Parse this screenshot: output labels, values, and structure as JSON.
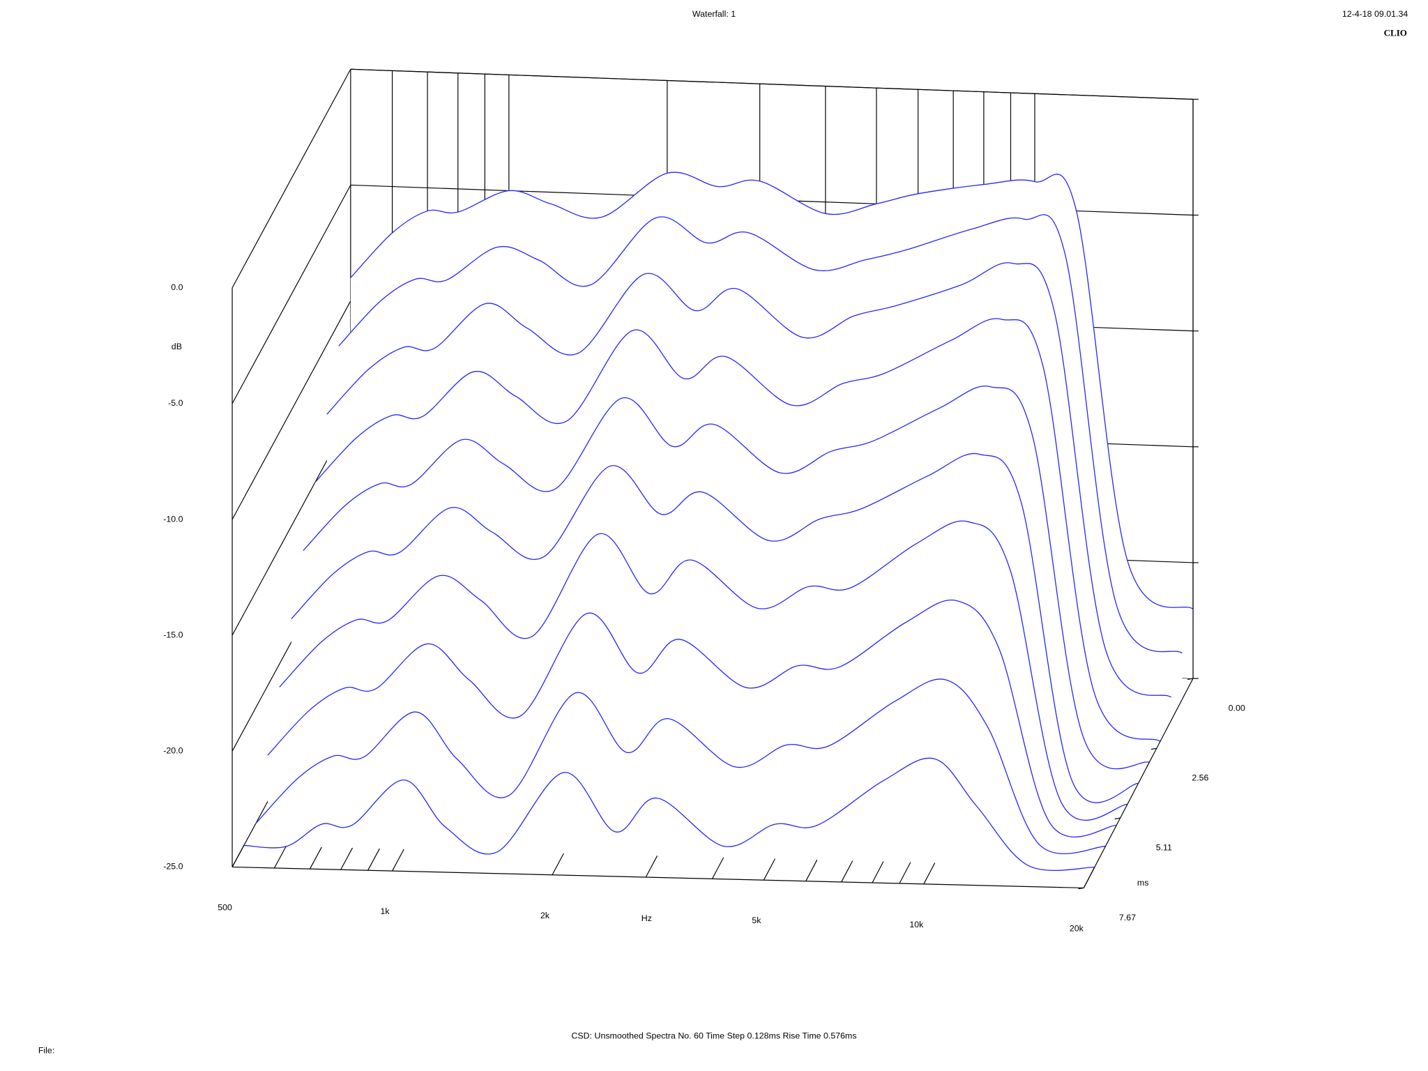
{
  "chart_data": {
    "type": "waterfall",
    "title": "Waterfall: 1",
    "timestamp": "12-4-18 09.01.34",
    "brand": "CLIO",
    "x_label": "Hz",
    "y_label": "dB",
    "z_label": "ms",
    "footer": "CSD:   Unsmoothed   Spectra No. 60   Time Step 0.128ms   Rise Time 0.576ms",
    "file_label": "File:",
    "color": "#2626ff",
    "xscale": "log",
    "xlim": [
      500,
      20000
    ],
    "xticks": [
      500,
      {
        "value": 1000,
        "label": "1k"
      },
      {
        "value": 2000,
        "label": "2k"
      },
      {
        "value": 5000,
        "label": "5k"
      },
      {
        "value": 10000,
        "label": "10k"
      },
      {
        "value": 20000,
        "label": "20k"
      }
    ],
    "xminorticks": [
      600,
      700,
      800,
      900,
      3000,
      4000,
      6000,
      7000,
      8000,
      9000
    ],
    "ylim": [
      -25,
      0
    ],
    "yticks": [
      {
        "value": 0,
        "label": "0.0"
      },
      {
        "value": -5,
        "label": "-5.0"
      },
      {
        "value": -10,
        "label": "-10.0"
      },
      {
        "value": -15,
        "label": "-15.0"
      },
      {
        "value": -20,
        "label": "-20.0"
      },
      {
        "value": -25,
        "label": "-25.0"
      }
    ],
    "zlim": [
      0,
      7.67
    ],
    "zticks": [
      {
        "value": 0,
        "label": "0.00"
      },
      2.56,
      5.11,
      7.67
    ],
    "x": [
      500,
      600,
      700,
      800,
      1000,
      1200,
      1500,
      2000,
      2500,
      3000,
      4000,
      5000,
      6000,
      8000,
      10000,
      12000,
      15000,
      20000
    ],
    "series": [
      {
        "z": 0,
        "values": [
          -9,
          -7,
          -6,
          -6,
          -5,
          -5.5,
          -6,
          -4,
          -4.5,
          -4.2,
          -5.5,
          -5,
          -4.5,
          -4,
          -3.8,
          -5,
          -20,
          -22
        ]
      },
      {
        "z": 0.768,
        "values": [
          -11,
          -9,
          -8,
          -8,
          -6.5,
          -7,
          -8,
          -5,
          -6,
          -5.5,
          -7,
          -6.5,
          -6,
          -5,
          -4.5,
          -6,
          -21,
          -23
        ]
      },
      {
        "z": 1.536,
        "values": [
          -13,
          -11,
          -10,
          -10,
          -8,
          -9,
          -10,
          -6.5,
          -8,
          -7,
          -9,
          -8,
          -7.5,
          -6.5,
          -5.5,
          -7.5,
          -22,
          -24
        ]
      },
      {
        "z": 2.304,
        "values": [
          -15,
          -13,
          -12,
          -12,
          -10,
          -11,
          -12,
          -8,
          -10,
          -9,
          -11,
          -10,
          -9.5,
          -8,
          -7,
          -9,
          -23,
          -25
        ]
      },
      {
        "z": 3.072,
        "values": [
          -17,
          -15,
          -14,
          -14,
          -12,
          -13,
          -14,
          -10,
          -12,
          -11,
          -13,
          -12,
          -11.5,
          -10,
          -9,
          -11,
          -24,
          -25
        ]
      },
      {
        "z": 3.84,
        "values": [
          -19,
          -17,
          -16,
          -16,
          -14,
          -15,
          -16,
          -12,
          -14,
          -13,
          -15,
          -14,
          -13.5,
          -12,
          -11,
          -13,
          -25,
          -25
        ]
      },
      {
        "z": 4.608,
        "values": [
          -21,
          -19,
          -18,
          -18,
          -16,
          -17,
          -18.5,
          -14,
          -16.5,
          -15,
          -17,
          -16,
          -16,
          -14,
          -13,
          -15,
          -25,
          -25
        ]
      },
      {
        "z": 5.376,
        "values": [
          -23,
          -21,
          -20,
          -20,
          -18,
          -19.5,
          -21,
          -16.5,
          -19,
          -17.5,
          -19.5,
          -18.5,
          -18.5,
          -16.5,
          -15.5,
          -17.5,
          -25,
          -25
        ]
      },
      {
        "z": 6.144,
        "values": [
          -25,
          -23,
          -22,
          -22,
          -20,
          -22,
          -23.5,
          -19,
          -21.5,
          -20,
          -22,
          -21,
          -21,
          -19,
          -18,
          -20,
          -25,
          -25
        ]
      },
      {
        "z": 6.912,
        "values": [
          -25,
          -25,
          -24,
          -24,
          -22,
          -24,
          -25,
          -21.5,
          -24,
          -22.5,
          -24.5,
          -23.5,
          -23.5,
          -21.5,
          -20.5,
          -22.5,
          -25,
          -25
        ]
      }
    ]
  }
}
